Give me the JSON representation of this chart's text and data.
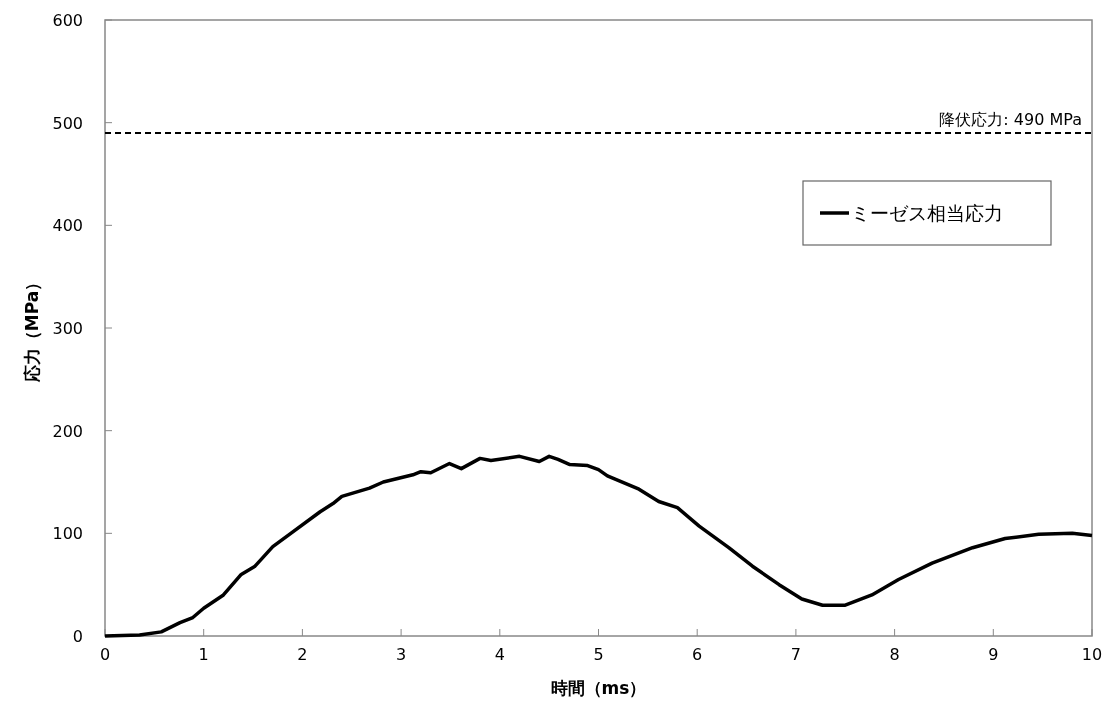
{
  "chart_data": {
    "type": "line",
    "xlabel": "時間（ms）",
    "ylabel": "応力（MPa）",
    "xlim": [
      0,
      10
    ],
    "xticks": [
      0,
      1,
      2,
      3,
      4,
      5,
      6,
      7,
      8,
      9,
      10
    ],
    "ylim": [
      0,
      600
    ],
    "yticks": [
      0,
      100,
      200,
      300,
      400,
      500,
      600
    ],
    "grid": false,
    "legend": "top right",
    "line_style": "solid",
    "ref_lines": [
      {
        "axis": "y",
        "value": 490,
        "label": "降伏応力: 490 MPa",
        "color": "#000000",
        "line_style": "dashed"
      }
    ],
    "series": [
      {
        "name": "ミーゼス相当応力",
        "color": "#000000",
        "x": [
          0,
          0.35,
          0.57,
          0.76,
          0.89,
          1.0,
          1.2,
          1.38,
          1.52,
          1.7,
          1.91,
          2.18,
          2.31,
          2.4,
          2.68,
          2.82,
          3.12,
          3.2,
          3.3,
          3.49,
          3.61,
          3.8,
          3.91,
          4.2,
          4.4,
          4.5,
          4.59,
          4.71,
          4.89,
          5.0,
          5.09,
          5.41,
          5.61,
          5.8,
          6.02,
          6.32,
          6.56,
          6.83,
          7.06,
          7.27,
          7.5,
          7.77,
          8.04,
          8.38,
          8.79,
          9.12,
          9.46,
          9.8,
          10.0
        ],
        "values": [
          0,
          1,
          4,
          13,
          18,
          27,
          40,
          60,
          68,
          87,
          102,
          121,
          129,
          136,
          144,
          150,
          157,
          160,
          159,
          168,
          163,
          173,
          171,
          175,
          170,
          175,
          172,
          167,
          166,
          162,
          156,
          143,
          131,
          125,
          107,
          86,
          68,
          50,
          36,
          30,
          30,
          40,
          55,
          71,
          86,
          95,
          99,
          100,
          98
        ]
      }
    ]
  }
}
